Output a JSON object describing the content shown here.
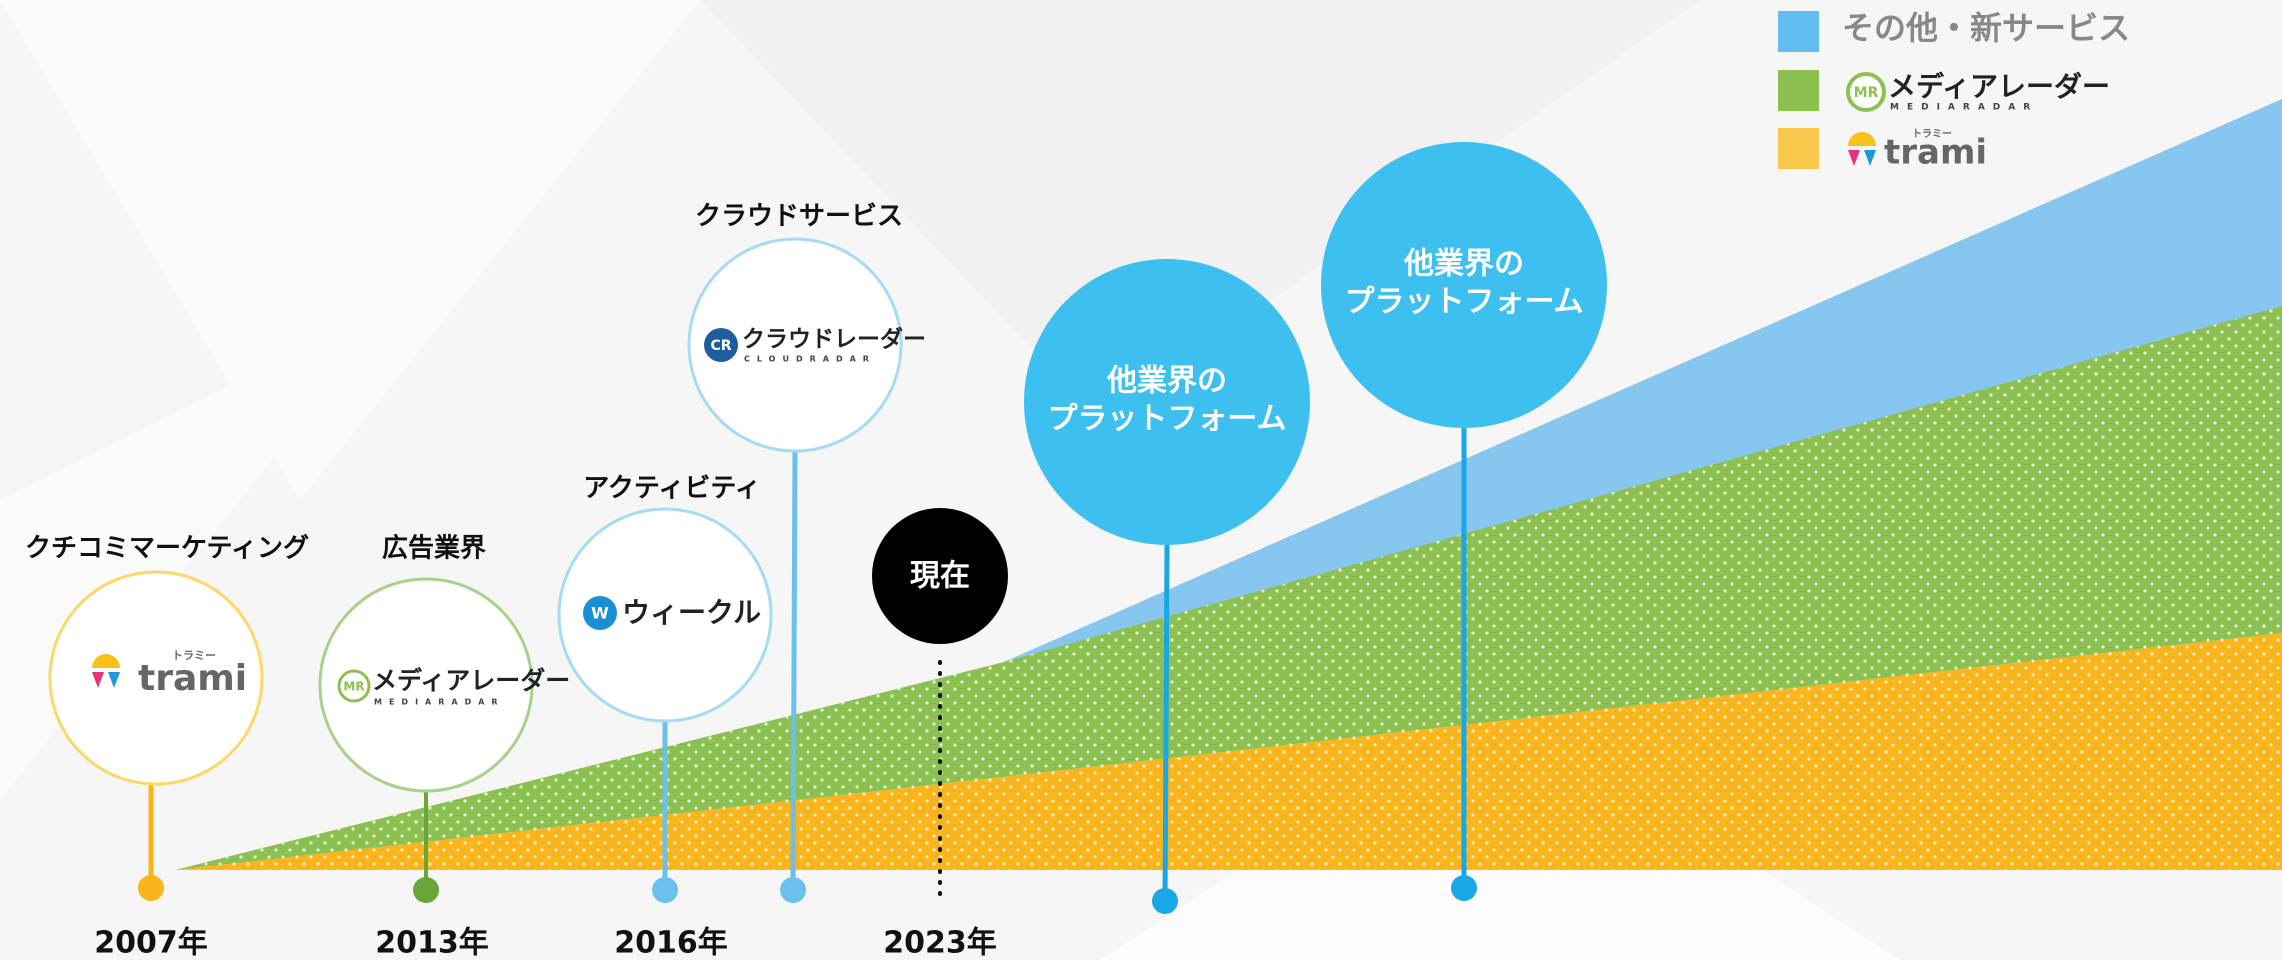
{
  "legend": [
    {
      "label": "その他・新サービス"
    },
    {
      "label": "メディアレーダー",
      "sub": "MEDIARADAR",
      "logo_mark": "MR"
    },
    {
      "label": "trami",
      "sub": "トラミー"
    }
  ],
  "milestones": [
    {
      "category": "クチコミマーケティング",
      "logo": "trami",
      "logo_sub": "トラミー",
      "year": "2007年"
    },
    {
      "category": "広告業界",
      "logo": "メディアレーダー",
      "logo_sub": "MEDIARADAR",
      "logo_mark": "MR",
      "year": "2013年"
    },
    {
      "category": "アクティビティ",
      "logo": "ウィークル",
      "logo_mark": "W",
      "year": "2016年"
    },
    {
      "category": "クラウドサービス",
      "logo": "クラウドレーダー",
      "logo_sub": "CLOUDRADAR",
      "logo_mark": "CR"
    }
  ],
  "now": {
    "label": "現在",
    "year": "2023年"
  },
  "future": [
    {
      "lines": [
        "他業界の",
        "プラットフォーム"
      ]
    },
    {
      "lines": [
        "他業界の",
        "プラットフォーム"
      ]
    }
  ]
}
